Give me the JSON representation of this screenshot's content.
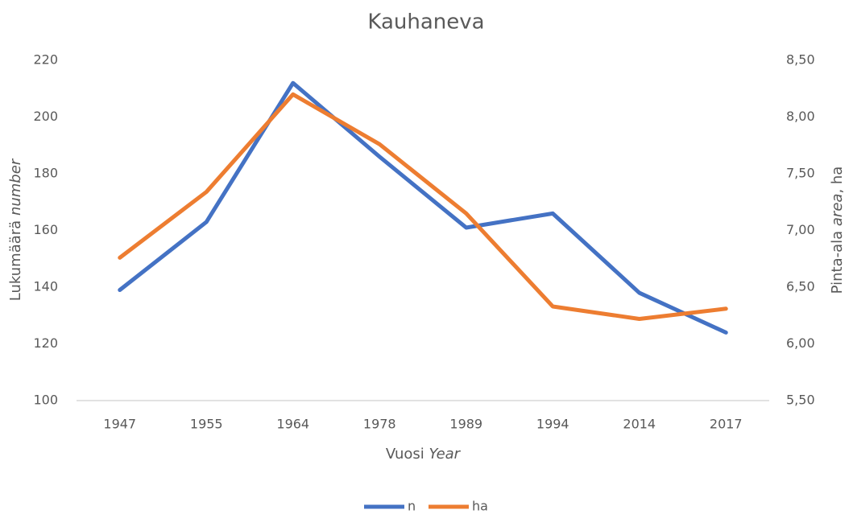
{
  "chart_data": {
    "type": "line",
    "title": "Kauhaneva",
    "categories": [
      "1947",
      "1955",
      "1964",
      "1978",
      "1989",
      "1994",
      "2014",
      "2017"
    ],
    "series": [
      {
        "name": "n",
        "color": "#4472c4",
        "values": [
          139,
          163,
          212,
          186,
          161,
          166,
          138,
          124
        ]
      },
      {
        "name": "ha",
        "color": "#ed7d31",
        "axis": "y2",
        "values": [
          6.76,
          7.34,
          8.2,
          7.76,
          7.15,
          6.33,
          6.22,
          6.31
        ]
      }
    ],
    "ylim": [
      100,
      220
    ],
    "yticks": [
      100,
      120,
      140,
      160,
      180,
      200,
      220
    ],
    "y2lim": [
      5.5,
      8.5
    ],
    "y2ticks": [
      {
        "value": 5.5,
        "label": "5,50"
      },
      {
        "value": 6,
        "label": "6,00"
      },
      {
        "value": 6.5,
        "label": "6,50"
      },
      {
        "value": 7,
        "label": "7,00"
      },
      {
        "value": 7.5,
        "label": "7,50"
      },
      {
        "value": 8,
        "label": "8,00"
      },
      {
        "value": 8.5,
        "label": "8,50"
      }
    ],
    "x_label": [
      "Vuosi",
      "Year"
    ],
    "y_label": [
      "Lukumäärä",
      "number"
    ],
    "y2_label": [
      "Pinta-ala",
      "area",
      ", ha"
    ],
    "grid": false,
    "legend": "bottom"
  }
}
